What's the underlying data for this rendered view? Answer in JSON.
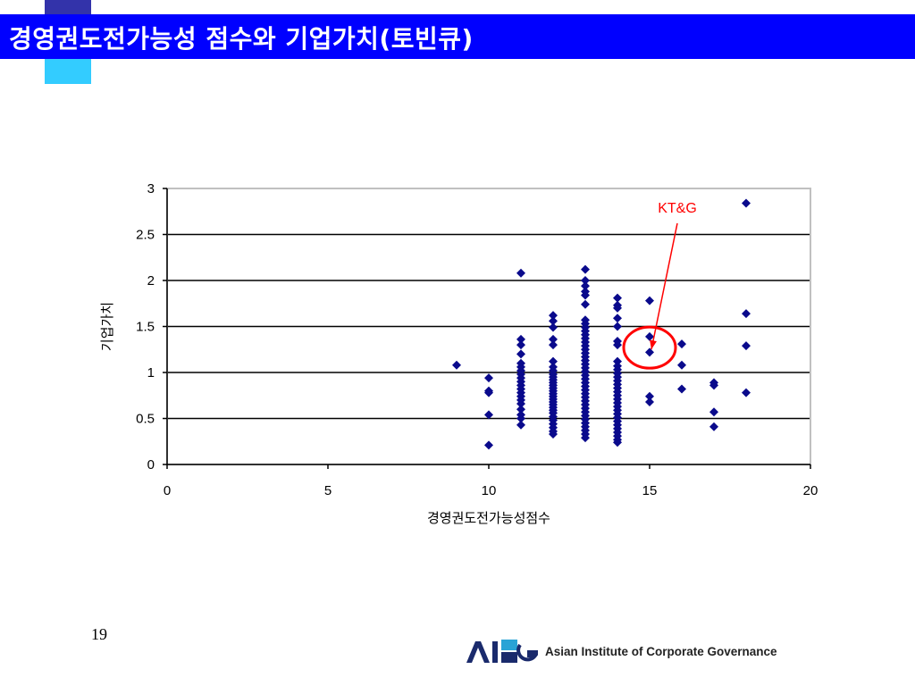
{
  "slide": {
    "title": "경영권도전가능성 점수와 기업가치(토빈큐)",
    "page_number": "19",
    "logo": {
      "text": "Asian Institute of Corporate Governance",
      "mark_letters": "AICG"
    }
  },
  "colors": {
    "title_bar": "#0000ff",
    "marker": "#0a0a8c",
    "annotation": "#ff0000"
  },
  "chart_data": {
    "type": "scatter",
    "xlabel": "경영권도전가능성점수",
    "ylabel": "기업가치",
    "xlim": [
      0,
      20
    ],
    "ylim": [
      0,
      3
    ],
    "x_ticks": [
      "0",
      "5",
      "10",
      "15",
      "20"
    ],
    "y_ticks": [
      "0",
      "0.5",
      "1",
      "1.5",
      "2",
      "2.5",
      "3"
    ],
    "grid": "horizontal",
    "annotation": {
      "label": "KT&G",
      "x": 15,
      "y": 1.29
    },
    "points": [
      [
        9,
        1.08
      ],
      [
        10,
        0.94
      ],
      [
        10,
        0.8
      ],
      [
        10,
        0.78
      ],
      [
        10,
        0.54
      ],
      [
        10,
        0.21
      ],
      [
        11,
        2.08
      ],
      [
        11,
        1.36
      ],
      [
        11,
        1.3
      ],
      [
        11,
        1.2
      ],
      [
        11,
        1.1
      ],
      [
        11,
        1.06
      ],
      [
        11,
        1.02
      ],
      [
        11,
        0.98
      ],
      [
        11,
        0.94
      ],
      [
        11,
        0.9
      ],
      [
        11,
        0.86
      ],
      [
        11,
        0.82
      ],
      [
        11,
        0.78
      ],
      [
        11,
        0.74
      ],
      [
        11,
        0.7
      ],
      [
        11,
        0.66
      ],
      [
        11,
        0.6
      ],
      [
        11,
        0.54
      ],
      [
        11,
        0.5
      ],
      [
        11,
        0.43
      ],
      [
        12,
        1.62
      ],
      [
        12,
        1.56
      ],
      [
        12,
        1.49
      ],
      [
        12,
        1.36
      ],
      [
        12,
        1.3
      ],
      [
        12,
        1.12
      ],
      [
        12,
        1.06
      ],
      [
        12,
        1.02
      ],
      [
        12,
        0.98
      ],
      [
        12,
        0.95
      ],
      [
        12,
        0.92
      ],
      [
        12,
        0.89
      ],
      [
        12,
        0.86
      ],
      [
        12,
        0.83
      ],
      [
        12,
        0.8
      ],
      [
        12,
        0.77
      ],
      [
        12,
        0.74
      ],
      [
        12,
        0.71
      ],
      [
        12,
        0.68
      ],
      [
        12,
        0.65
      ],
      [
        12,
        0.62
      ],
      [
        12,
        0.59
      ],
      [
        12,
        0.56
      ],
      [
        12,
        0.52
      ],
      [
        12,
        0.48
      ],
      [
        12,
        0.44
      ],
      [
        12,
        0.4
      ],
      [
        12,
        0.36
      ],
      [
        12,
        0.33
      ],
      [
        13,
        2.12
      ],
      [
        13,
        2.0
      ],
      [
        13,
        1.94
      ],
      [
        13,
        1.88
      ],
      [
        13,
        1.84
      ],
      [
        13,
        1.74
      ],
      [
        13,
        1.57
      ],
      [
        13,
        1.53
      ],
      [
        13,
        1.49
      ],
      [
        13,
        1.45
      ],
      [
        13,
        1.41
      ],
      [
        13,
        1.37
      ],
      [
        13,
        1.33
      ],
      [
        13,
        1.29
      ],
      [
        13,
        1.25
      ],
      [
        13,
        1.21
      ],
      [
        13,
        1.17
      ],
      [
        13,
        1.13
      ],
      [
        13,
        1.09
      ],
      [
        13,
        1.05
      ],
      [
        13,
        1.01
      ],
      [
        13,
        0.97
      ],
      [
        13,
        0.93
      ],
      [
        13,
        0.89
      ],
      [
        13,
        0.85
      ],
      [
        13,
        0.81
      ],
      [
        13,
        0.77
      ],
      [
        13,
        0.73
      ],
      [
        13,
        0.69
      ],
      [
        13,
        0.65
      ],
      [
        13,
        0.61
      ],
      [
        13,
        0.57
      ],
      [
        13,
        0.53
      ],
      [
        13,
        0.49
      ],
      [
        13,
        0.45
      ],
      [
        13,
        0.41
      ],
      [
        13,
        0.37
      ],
      [
        13,
        0.33
      ],
      [
        13,
        0.29
      ],
      [
        14,
        1.81
      ],
      [
        14,
        1.73
      ],
      [
        14,
        1.7
      ],
      [
        14,
        1.59
      ],
      [
        14,
        1.5
      ],
      [
        14,
        1.34
      ],
      [
        14,
        1.3
      ],
      [
        14,
        1.12
      ],
      [
        14,
        1.07
      ],
      [
        14,
        1.03
      ],
      [
        14,
        0.99
      ],
      [
        14,
        0.95
      ],
      [
        14,
        0.91
      ],
      [
        14,
        0.87
      ],
      [
        14,
        0.83
      ],
      [
        14,
        0.79
      ],
      [
        14,
        0.75
      ],
      [
        14,
        0.71
      ],
      [
        14,
        0.67
      ],
      [
        14,
        0.63
      ],
      [
        14,
        0.59
      ],
      [
        14,
        0.55
      ],
      [
        14,
        0.51
      ],
      [
        14,
        0.47
      ],
      [
        14,
        0.43
      ],
      [
        14,
        0.39
      ],
      [
        14,
        0.35
      ],
      [
        14,
        0.31
      ],
      [
        14,
        0.27
      ],
      [
        14,
        0.24
      ],
      [
        15,
        1.78
      ],
      [
        15,
        1.39
      ],
      [
        15,
        1.22
      ],
      [
        15,
        0.74
      ],
      [
        15,
        0.68
      ],
      [
        16,
        1.31
      ],
      [
        16,
        1.08
      ],
      [
        16,
        0.82
      ],
      [
        17,
        0.89
      ],
      [
        17,
        0.86
      ],
      [
        17,
        0.57
      ],
      [
        17,
        0.41
      ],
      [
        18,
        2.84
      ],
      [
        18,
        1.64
      ],
      [
        18,
        1.29
      ],
      [
        18,
        0.78
      ]
    ]
  }
}
